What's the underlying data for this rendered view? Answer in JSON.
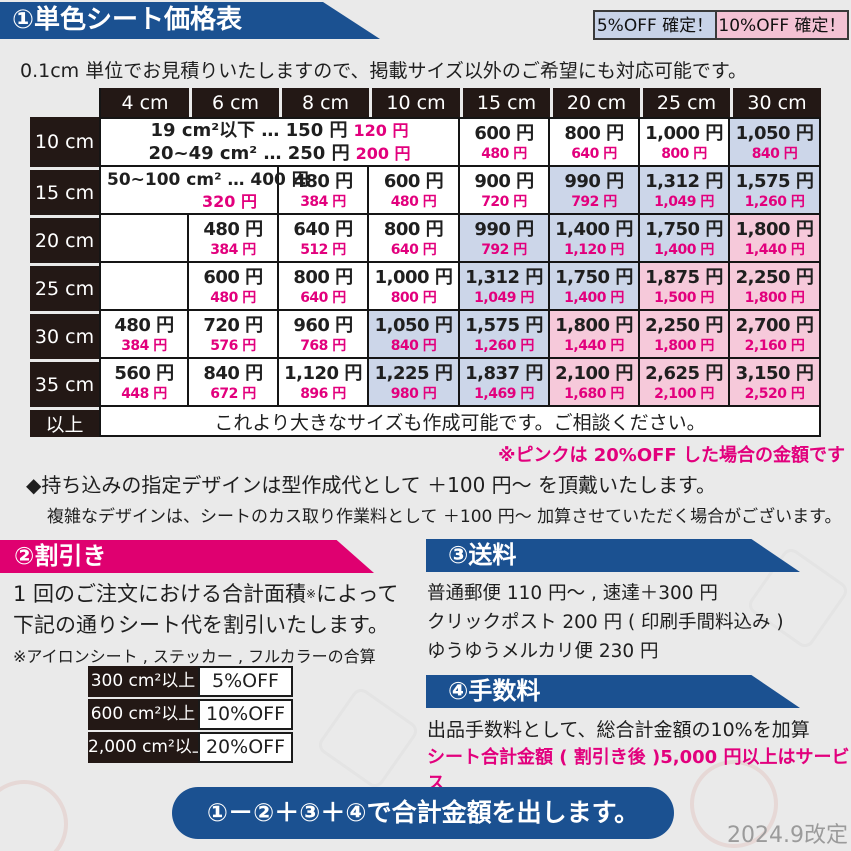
{
  "colors": {
    "navy": "#1b5191",
    "magenta": "#df0070",
    "pink_text": "#e2007d",
    "cell_blue": "#ccd6e9",
    "cell_pink": "#f6c9da",
    "badge_blue": "#c8d3e8",
    "badge_pink": "#f3c2d4",
    "header_dark": "#231815",
    "page_bg": "#eaeaea"
  },
  "header": {
    "title": "①単色シート価格表",
    "badge_5": "5%OFF 確定！",
    "badge_10": "10%OFF 確定！",
    "subtitle": "0.1cm 単位でお見積りいたしますので、掲載サイズ以外のご希望にも対応可能です。"
  },
  "price_table": {
    "col_headers": [
      "4 cm",
      "6 cm",
      "8 cm",
      "10 cm",
      "15 cm",
      "20 cm",
      "25 cm",
      "30 cm"
    ],
    "rows": [
      {
        "header": "10 cm",
        "cells": [
          {
            "kind": "tier2",
            "colspan": 4,
            "lines": [
              [
                "19 cm²以下 … 150 円",
                "120 円"
              ],
              [
                "20~49 cm² … 250 円",
                "200 円"
              ]
            ]
          },
          {
            "kind": "price",
            "main": "600 円",
            "off": "480 円",
            "bg": "white"
          },
          {
            "kind": "price",
            "main": "800 円",
            "off": "640 円",
            "bg": "white"
          },
          {
            "kind": "price",
            "main": "1,000 円",
            "off": "800 円",
            "bg": "white"
          },
          {
            "kind": "price",
            "main": "1,050 円",
            "off": "840 円",
            "bg": "blue"
          }
        ]
      },
      {
        "header": "15 cm",
        "cells": [
          {
            "kind": "tier1",
            "colspan": 2,
            "black": "50~100 cm² … 400 円",
            "pink": "320 円"
          },
          {
            "kind": "price",
            "main": "480 円",
            "off": "384 円",
            "bg": "white"
          },
          {
            "kind": "price",
            "main": "600 円",
            "off": "480 円",
            "bg": "white"
          },
          {
            "kind": "price",
            "main": "900 円",
            "off": "720 円",
            "bg": "white"
          },
          {
            "kind": "price",
            "main": "990 円",
            "off": "792 円",
            "bg": "blue"
          },
          {
            "kind": "price",
            "main": "1,312 円",
            "off": "1,049 円",
            "bg": "blue"
          },
          {
            "kind": "price",
            "main": "1,575 円",
            "off": "1,260 円",
            "bg": "blue"
          }
        ]
      },
      {
        "header": "20 cm",
        "cells": [
          {
            "kind": "empty"
          },
          {
            "kind": "price",
            "main": "480 円",
            "off": "384 円",
            "bg": "white"
          },
          {
            "kind": "price",
            "main": "640 円",
            "off": "512 円",
            "bg": "white"
          },
          {
            "kind": "price",
            "main": "800 円",
            "off": "640 円",
            "bg": "white"
          },
          {
            "kind": "price",
            "main": "990 円",
            "off": "792 円",
            "bg": "blue"
          },
          {
            "kind": "price",
            "main": "1,400 円",
            "off": "1,120 円",
            "bg": "blue"
          },
          {
            "kind": "price",
            "main": "1,750 円",
            "off": "1,400 円",
            "bg": "blue"
          },
          {
            "kind": "price",
            "main": "1,800 円",
            "off": "1,440 円",
            "bg": "pink"
          }
        ]
      },
      {
        "header": "25 cm",
        "cells": [
          {
            "kind": "empty"
          },
          {
            "kind": "price",
            "main": "600 円",
            "off": "480 円",
            "bg": "white"
          },
          {
            "kind": "price",
            "main": "800 円",
            "off": "640 円",
            "bg": "white"
          },
          {
            "kind": "price",
            "main": "1,000 円",
            "off": "800 円",
            "bg": "white"
          },
          {
            "kind": "price",
            "main": "1,312 円",
            "off": "1,049 円",
            "bg": "blue"
          },
          {
            "kind": "price",
            "main": "1,750 円",
            "off": "1,400 円",
            "bg": "blue"
          },
          {
            "kind": "price",
            "main": "1,875 円",
            "off": "1,500 円",
            "bg": "pink"
          },
          {
            "kind": "price",
            "main": "2,250 円",
            "off": "1,800 円",
            "bg": "pink"
          }
        ]
      },
      {
        "header": "30 cm",
        "cells": [
          {
            "kind": "price",
            "main": "480 円",
            "off": "384 円",
            "bg": "white"
          },
          {
            "kind": "price",
            "main": "720 円",
            "off": "576 円",
            "bg": "white"
          },
          {
            "kind": "price",
            "main": "960 円",
            "off": "768 円",
            "bg": "white"
          },
          {
            "kind": "price",
            "main": "1,050 円",
            "off": "840 円",
            "bg": "blue"
          },
          {
            "kind": "price",
            "main": "1,575 円",
            "off": "1,260 円",
            "bg": "blue"
          },
          {
            "kind": "price",
            "main": "1,800 円",
            "off": "1,440 円",
            "bg": "pink"
          },
          {
            "kind": "price",
            "main": "2,250 円",
            "off": "1,800 円",
            "bg": "pink"
          },
          {
            "kind": "price",
            "main": "2,700 円",
            "off": "2,160 円",
            "bg": "pink"
          }
        ]
      },
      {
        "header": "35 cm",
        "cells": [
          {
            "kind": "price",
            "main": "560 円",
            "off": "448 円",
            "bg": "white"
          },
          {
            "kind": "price",
            "main": "840 円",
            "off": "672 円",
            "bg": "white"
          },
          {
            "kind": "price",
            "main": "1,120 円",
            "off": "896 円",
            "bg": "white"
          },
          {
            "kind": "price",
            "main": "1,225 円",
            "off": "980 円",
            "bg": "blue"
          },
          {
            "kind": "price",
            "main": "1,837 円",
            "off": "1,469 円",
            "bg": "blue"
          },
          {
            "kind": "price",
            "main": "2,100 円",
            "off": "1,680 円",
            "bg": "pink"
          },
          {
            "kind": "price",
            "main": "2,625 円",
            "off": "2,100 円",
            "bg": "pink"
          },
          {
            "kind": "price",
            "main": "3,150 円",
            "off": "2,520 円",
            "bg": "pink"
          }
        ]
      },
      {
        "header": "以上",
        "cells": [
          {
            "kind": "note",
            "colspan": 8,
            "text": "これより大きなサイズも作成可能です。ご相談ください。"
          }
        ]
      }
    ],
    "pink_note": "※ピンクは 20%OFF した場合の金額です"
  },
  "notes": {
    "line1": "◆持ち込みの指定デザインは型作成代として ＋100 円～ を頂戴いたします。",
    "line2": "複雑なデザインは、シートのカス取り作業料として ＋100 円～ 加算させていただく場合がございます。"
  },
  "discount": {
    "title": "②割引き",
    "body1_pre": "1 回のご注文における合計面積",
    "body1_sup": "※",
    "body1_post": "によって",
    "body2": "下記の通りシート代を割引いたします。",
    "note": "※アイロンシート , ステッカー , フルカラーの合算",
    "table": [
      {
        "area": "300 cm²以上",
        "off": "5%OFF"
      },
      {
        "area": "600 cm²以上",
        "off": "10%OFF"
      },
      {
        "area": "2,000 cm²以上",
        "off": "20%OFF"
      }
    ]
  },
  "shipping": {
    "title": "③送料",
    "lines": [
      "普通郵便 110 円～ , 速達＋300 円",
      "クリックポスト 200 円 ( 印刷手間料込み )",
      "ゆうゆうメルカリ便 230 円"
    ]
  },
  "fees": {
    "title": "④手数料",
    "line1": "出品手数料として、総合計金額の10%を加算",
    "line2": "シート合計金額 ( 割引き後 )5,000 円以上はサービス"
  },
  "footer": {
    "formula": "①－②＋③＋④で合計金額を出します。",
    "revision": "2024.9改定"
  }
}
